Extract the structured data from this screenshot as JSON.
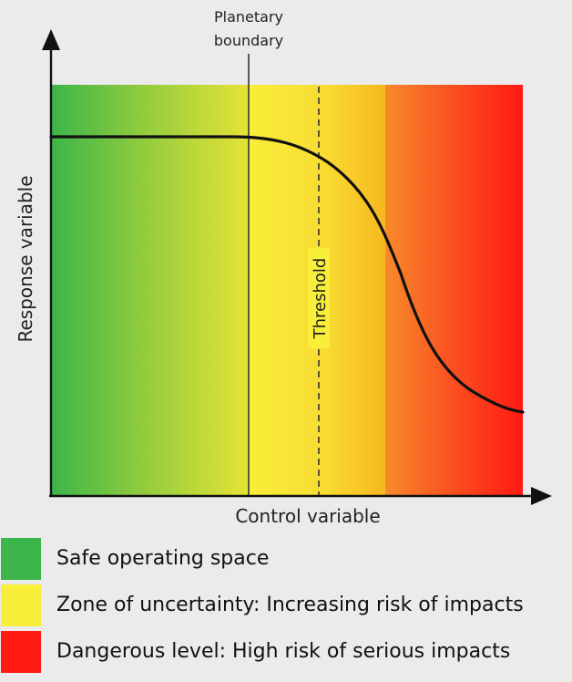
{
  "annotations": {
    "boundary_label_line1": "Planetary",
    "boundary_label_line2": "boundary",
    "threshold_label": "Threshold",
    "y_axis_label": "Response variable",
    "x_axis_label": "Control variable"
  },
  "zones": [
    {
      "name": "Safe operating space",
      "color": "#3cb54a"
    },
    {
      "name": "Zone of uncertainty",
      "color": "#f7e93a"
    },
    {
      "name": "Dangerous level",
      "color": "#ff2a12"
    }
  ],
  "legend": [
    {
      "label": "Safe operating space",
      "color": "#3cb54a"
    },
    {
      "label": "Zone of uncertainty: Increasing risk of impacts",
      "color": "#f9ee3a"
    },
    {
      "label": "Dangerous level: High risk of serious impacts",
      "color": "#ff1a12"
    }
  ]
}
